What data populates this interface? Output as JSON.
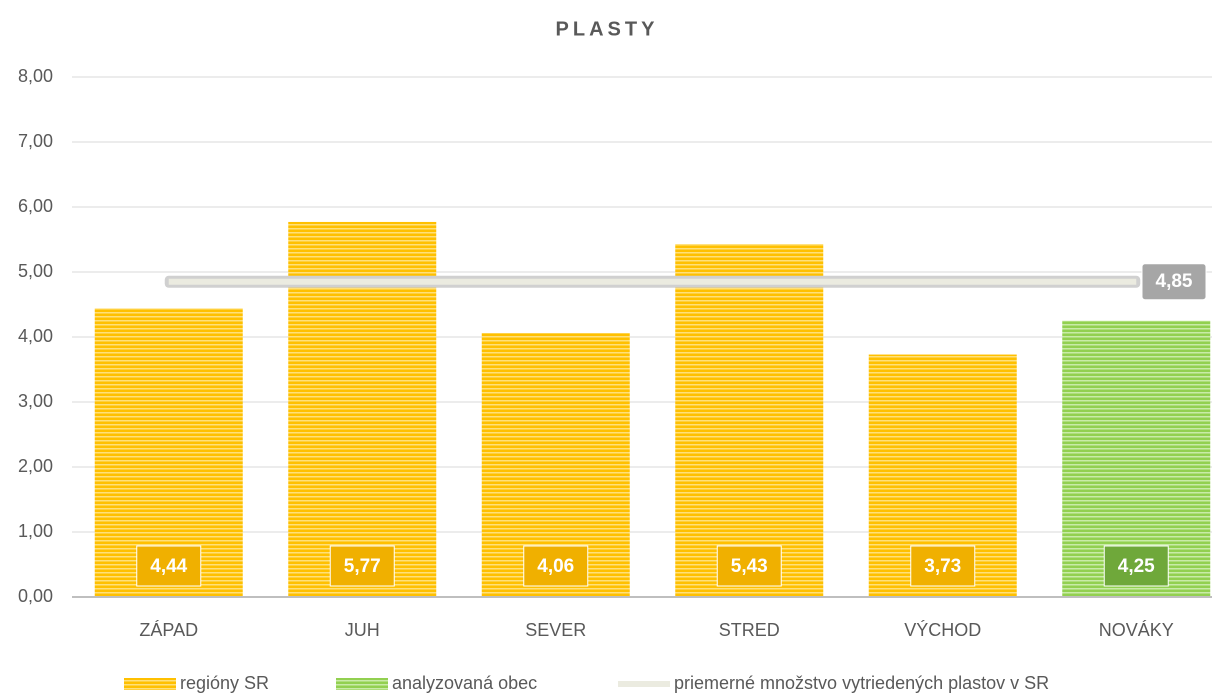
{
  "chart_data": {
    "type": "bar",
    "title": "PLASTY",
    "categories": [
      "ZÁPAD",
      "JUH",
      "SEVER",
      "STRED",
      "VÝCHOD",
      "NOVÁKY"
    ],
    "series": [
      {
        "name": "regióny SR",
        "color": "#ffc000",
        "values": [
          4.44,
          5.77,
          4.06,
          5.43,
          3.73,
          null
        ],
        "value_labels": [
          "4,44",
          "5,77",
          "4,06",
          "5,43",
          "3,73",
          null
        ]
      },
      {
        "name": "analyzovaná obec",
        "color": "#92d050",
        "values": [
          null,
          null,
          null,
          null,
          null,
          4.25
        ],
        "value_labels": [
          null,
          null,
          null,
          null,
          null,
          "4,25"
        ]
      }
    ],
    "reference_line": {
      "name": "priemerné množstvo vytriedených plastov v SR",
      "color": "#ebebe0",
      "value": 4.85,
      "value_label": "4,85"
    },
    "ylim": [
      0,
      8
    ],
    "yticks": [
      {
        "value": 0,
        "label": "0,00"
      },
      {
        "value": 1,
        "label": "1,00"
      },
      {
        "value": 2,
        "label": "2,00"
      },
      {
        "value": 3,
        "label": "3,00"
      },
      {
        "value": 4,
        "label": "4,00"
      },
      {
        "value": 5,
        "label": "5,00"
      },
      {
        "value": 6,
        "label": "6,00"
      },
      {
        "value": 7,
        "label": "7,00"
      },
      {
        "value": 8,
        "label": "8,00"
      }
    ],
    "grid": true,
    "legend": "bottom"
  }
}
